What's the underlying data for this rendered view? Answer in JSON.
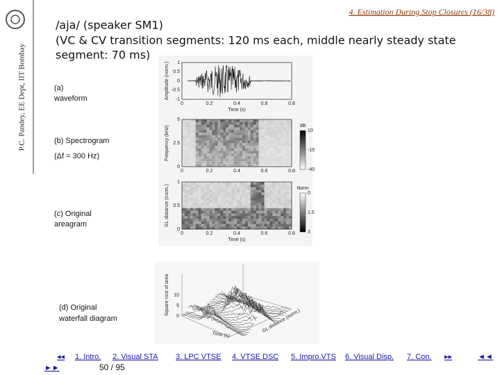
{
  "sidebar": {
    "affiliation": "P.C. Pandey, EE Dept, IIT Bombay"
  },
  "header": {
    "section": "4. Estimation During Stop Closures (16/38)"
  },
  "title": {
    "lines": [
      "/aja/ (speaker SM1)",
      "(VC & CV transition segments: 120 ms each, middle nearly steady state",
      "segment: 70 ms)"
    ]
  },
  "panels": [
    {
      "caption": [
        "(a)",
        "waveform"
      ],
      "ylabel": "Amplitude (norm.)",
      "yticks": [
        1,
        0.5,
        0,
        -0.5,
        -1
      ],
      "xticks": [
        0,
        0.2,
        0.4,
        0.6,
        0.8
      ],
      "xlabel": "Time (s)"
    },
    {
      "caption": [
        "(b) Spectrogram",
        "(Δf = 300 Hz)"
      ],
      "ylabel": "Frequency (kHz)",
      "yticks": [
        5,
        2.5,
        0
      ],
      "xticks": [
        0,
        0.2,
        0.4,
        0.6,
        0.8
      ],
      "xlabel": "Time (s)",
      "colorbar_label": "dB",
      "colorbar_ticks": [
        10,
        -15,
        -40
      ]
    },
    {
      "caption": [
        "(c) Original",
        "areagram"
      ],
      "ylabel": "GL distance (norm.)",
      "yticks": [
        1,
        0.5,
        0
      ],
      "xticks": [
        0,
        0.2,
        0.4,
        0.6,
        0.8
      ],
      "xlabel": "Time (s)",
      "colorbar_label": "Norm",
      "colorbar_ticks": [
        0,
        1.5,
        3
      ]
    },
    {
      "caption": [
        "(d) Original",
        "waterfall diagram"
      ],
      "zlabel": "Square root of area",
      "zticks": [
        10,
        5,
        0
      ],
      "xlabel": "Time (s)",
      "ylabel": "GL distance (norm.)"
    }
  ],
  "footer": {
    "prev": "◂◂",
    "links": [
      "1. Intro.",
      "2. Visual STA",
      "3. LPC VTSE",
      "4. VTSE DSC",
      "5. Impro.VTS",
      "6. Visual Disp.",
      "7. Con."
    ],
    "next": "▸▸",
    "back": "◄◄",
    "forward": "►►",
    "page": "50 / 95"
  }
}
